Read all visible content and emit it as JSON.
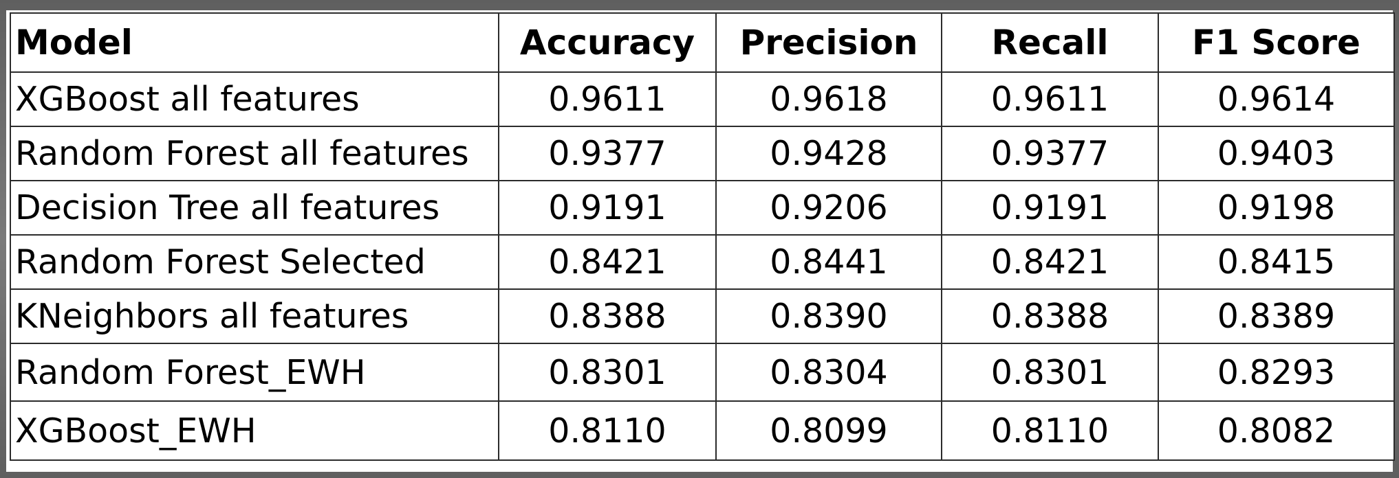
{
  "table": {
    "headers": [
      "Model",
      "Accuracy",
      "Precision",
      "Recall",
      "F1 Score"
    ],
    "rows": [
      [
        "XGBoost all features",
        "0.9611",
        "0.9618",
        "0.9611",
        "0.9614"
      ],
      [
        "Random Forest all features",
        "0.9377",
        "0.9428",
        "0.9377",
        "0.9403"
      ],
      [
        "Decision Tree all features",
        "0.9191",
        "0.9206",
        "0.9191",
        "0.9198"
      ],
      [
        "Random Forest Selected",
        "0.8421",
        "0.8441",
        "0.8421",
        "0.8415"
      ],
      [
        "KNeighbors all features",
        "0.8388",
        "0.8390",
        "0.8388",
        "0.8389"
      ],
      [
        "Random Forest_EWH",
        "0.8301",
        "0.8304",
        "0.8301",
        "0.8293"
      ],
      [
        "XGBoost_EWH",
        "0.8110",
        "0.8099",
        "0.8110",
        "0.8082"
      ]
    ]
  }
}
